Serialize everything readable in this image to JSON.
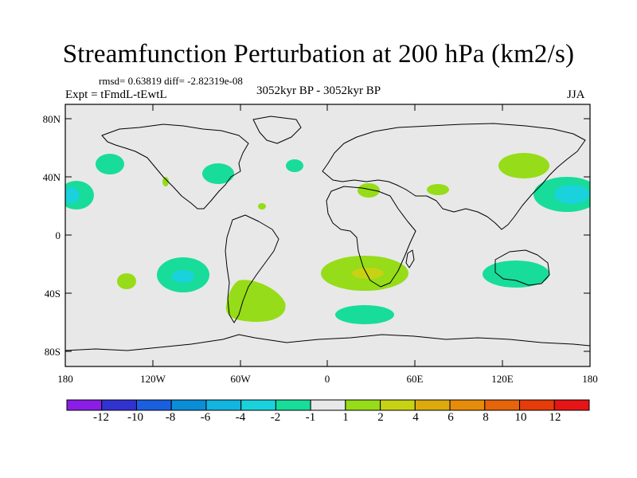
{
  "title": "Streamfunction Perturbation at 200 hPa (km2/s)",
  "stats": "rmsd= 0.63819 diff= -2.82319e-08",
  "experiment": "Expt = tFmdL-tEwtL",
  "period": "3052kyr BP - 3052kyr BP",
  "season": "JJA",
  "axes": {
    "lat_labels": [
      "80N",
      "40N",
      "0",
      "40S",
      "80S"
    ],
    "lon_labels": [
      "180",
      "120W",
      "60W",
      "0",
      "60E",
      "120E",
      "180"
    ]
  },
  "colorbar": {
    "labels": [
      "-12",
      "-10",
      "-8",
      "-6",
      "-4",
      "-2",
      "-1",
      "1",
      "2",
      "4",
      "6",
      "8",
      "10",
      "12"
    ],
    "colors": [
      "#8a1ee6",
      "#3232d2",
      "#1a5fe0",
      "#0a8ed8",
      "#12b4e0",
      "#1ad2dc",
      "#18dc9a",
      "#e8e8e8",
      "#96dc18",
      "#c8d214",
      "#dcaa0c",
      "#e68c0a",
      "#e6640a",
      "#e63c0a",
      "#e61414"
    ]
  },
  "anomaly_colors": {
    "neg_light": "#18dc9a",
    "neg_mid": "#1ad2dc",
    "pos_light": "#96dc18",
    "pos_mid": "#c8d214"
  }
}
